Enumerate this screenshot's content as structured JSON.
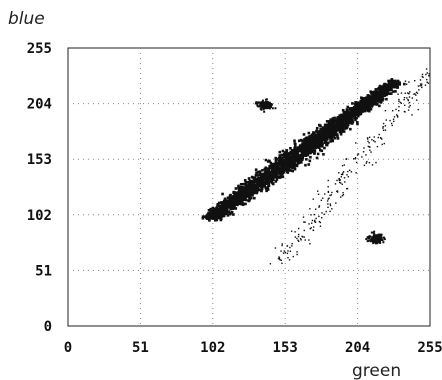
{
  "chart_data": {
    "type": "scatter",
    "title": "",
    "xlabel": "green",
    "ylabel": "blue",
    "xlim": [
      0,
      255
    ],
    "ylim": [
      0,
      255
    ],
    "x_ticks": [
      "0",
      "51",
      "102",
      "153",
      "204",
      "255"
    ],
    "y_ticks": [
      "0",
      "51",
      "102",
      "153",
      "204",
      "255"
    ],
    "grid": true,
    "point_color": "#111111",
    "clusters": [
      {
        "x_range": [
          100,
          230
        ],
        "y_range": [
          100,
          225
        ],
        "density": "high",
        "shape": "diagonal band"
      },
      {
        "x_range": [
          128,
          148
        ],
        "y_range": [
          195,
          212
        ],
        "density": "medium",
        "shape": "blob"
      },
      {
        "x_range": [
          205,
          228
        ],
        "y_range": [
          72,
          90
        ],
        "density": "medium",
        "shape": "blob"
      },
      {
        "x_range": [
          150,
          255
        ],
        "y_range": [
          60,
          255
        ],
        "density": "low",
        "shape": "scatter"
      }
    ]
  }
}
